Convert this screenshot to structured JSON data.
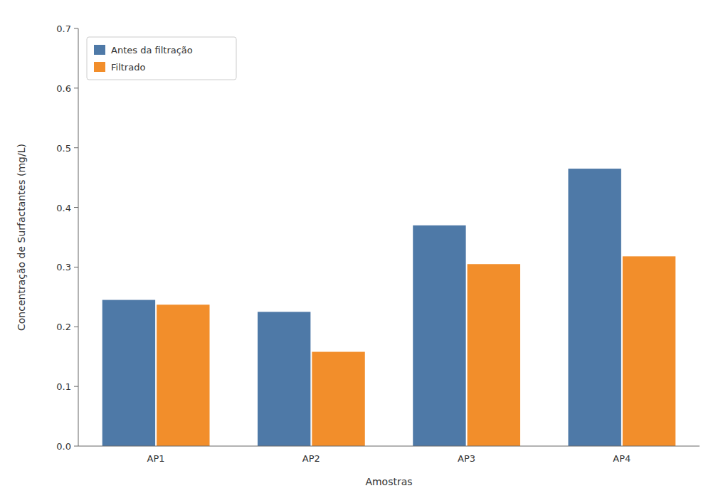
{
  "chart_data": {
    "type": "bar",
    "xlabel": "Amostras",
    "ylabel": "Concentração de Surfactantes (mg/L)",
    "categories": [
      "AP1",
      "AP2",
      "AP3",
      "AP4"
    ],
    "series": [
      {
        "name": "Antes da filtração",
        "values": [
          0.245,
          0.225,
          0.37,
          0.465
        ]
      },
      {
        "name": "Filtrado",
        "values": [
          0.237,
          0.158,
          0.305,
          0.318
        ]
      }
    ],
    "ylim": [
      0.0,
      0.7
    ],
    "yticks": [
      {
        "value": 0.0,
        "label": "0.0"
      },
      0.1,
      0.2,
      0.3,
      0.4,
      0.5,
      0.6,
      0.7
    ],
    "grid": false,
    "legend": "upper left"
  }
}
